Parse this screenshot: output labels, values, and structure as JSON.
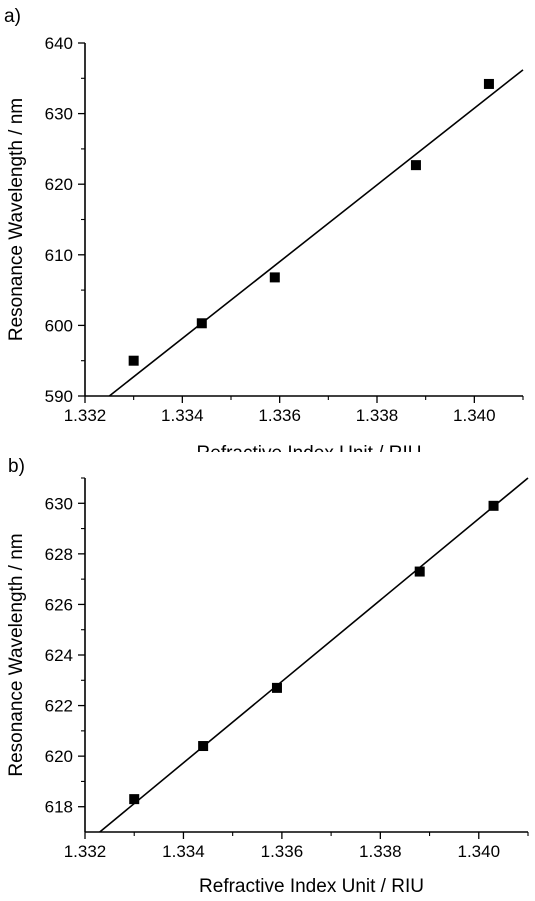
{
  "chart_data": [
    {
      "type": "scatter",
      "panel_label": "a)",
      "xlabel": "Refractive Index Unit / RIU",
      "ylabel": "Resonance Wavelength / nm",
      "xlim": [
        1.332,
        1.341
      ],
      "ylim": [
        590,
        640
      ],
      "xticks": [
        1.332,
        1.334,
        1.336,
        1.338,
        1.34
      ],
      "xtick_labels": [
        "1.332",
        "1.334",
        "1.336",
        "1.338",
        "1.340"
      ],
      "yticks": [
        590,
        600,
        610,
        620,
        630,
        640
      ],
      "ytick_labels": [
        "590",
        "600",
        "610",
        "620",
        "630",
        "640"
      ],
      "points": [
        {
          "x": 1.333,
          "y": 595.0
        },
        {
          "x": 1.3344,
          "y": 600.3
        },
        {
          "x": 1.3359,
          "y": 606.8
        },
        {
          "x": 1.3388,
          "y": 622.7
        },
        {
          "x": 1.3403,
          "y": 634.2
        }
      ],
      "fit_line": {
        "x": [
          1.3325,
          1.341
        ],
        "y": [
          590.0,
          636.2
        ]
      },
      "grid": false
    },
    {
      "type": "scatter",
      "panel_label": "b)",
      "xlabel": "Refractive Index Unit / RIU",
      "ylabel": "Resonance Wavelength / nm",
      "xlim": [
        1.332,
        1.341
      ],
      "ylim": [
        617,
        631
      ],
      "xticks": [
        1.332,
        1.334,
        1.336,
        1.338,
        1.34
      ],
      "xtick_labels": [
        "1.332",
        "1.334",
        "1.336",
        "1.338",
        "1.340"
      ],
      "yticks": [
        618,
        620,
        622,
        624,
        626,
        628,
        630
      ],
      "ytick_labels": [
        "618",
        "620",
        "622",
        "624",
        "626",
        "628",
        "630"
      ],
      "points": [
        {
          "x": 1.333,
          "y": 618.3
        },
        {
          "x": 1.3344,
          "y": 620.4
        },
        {
          "x": 1.3359,
          "y": 622.7
        },
        {
          "x": 1.3388,
          "y": 627.3
        },
        {
          "x": 1.3403,
          "y": 629.9
        }
      ],
      "fit_line": {
        "x": [
          1.3323,
          1.341
        ],
        "y": [
          617.0,
          631.0
        ]
      },
      "grid": false
    }
  ]
}
